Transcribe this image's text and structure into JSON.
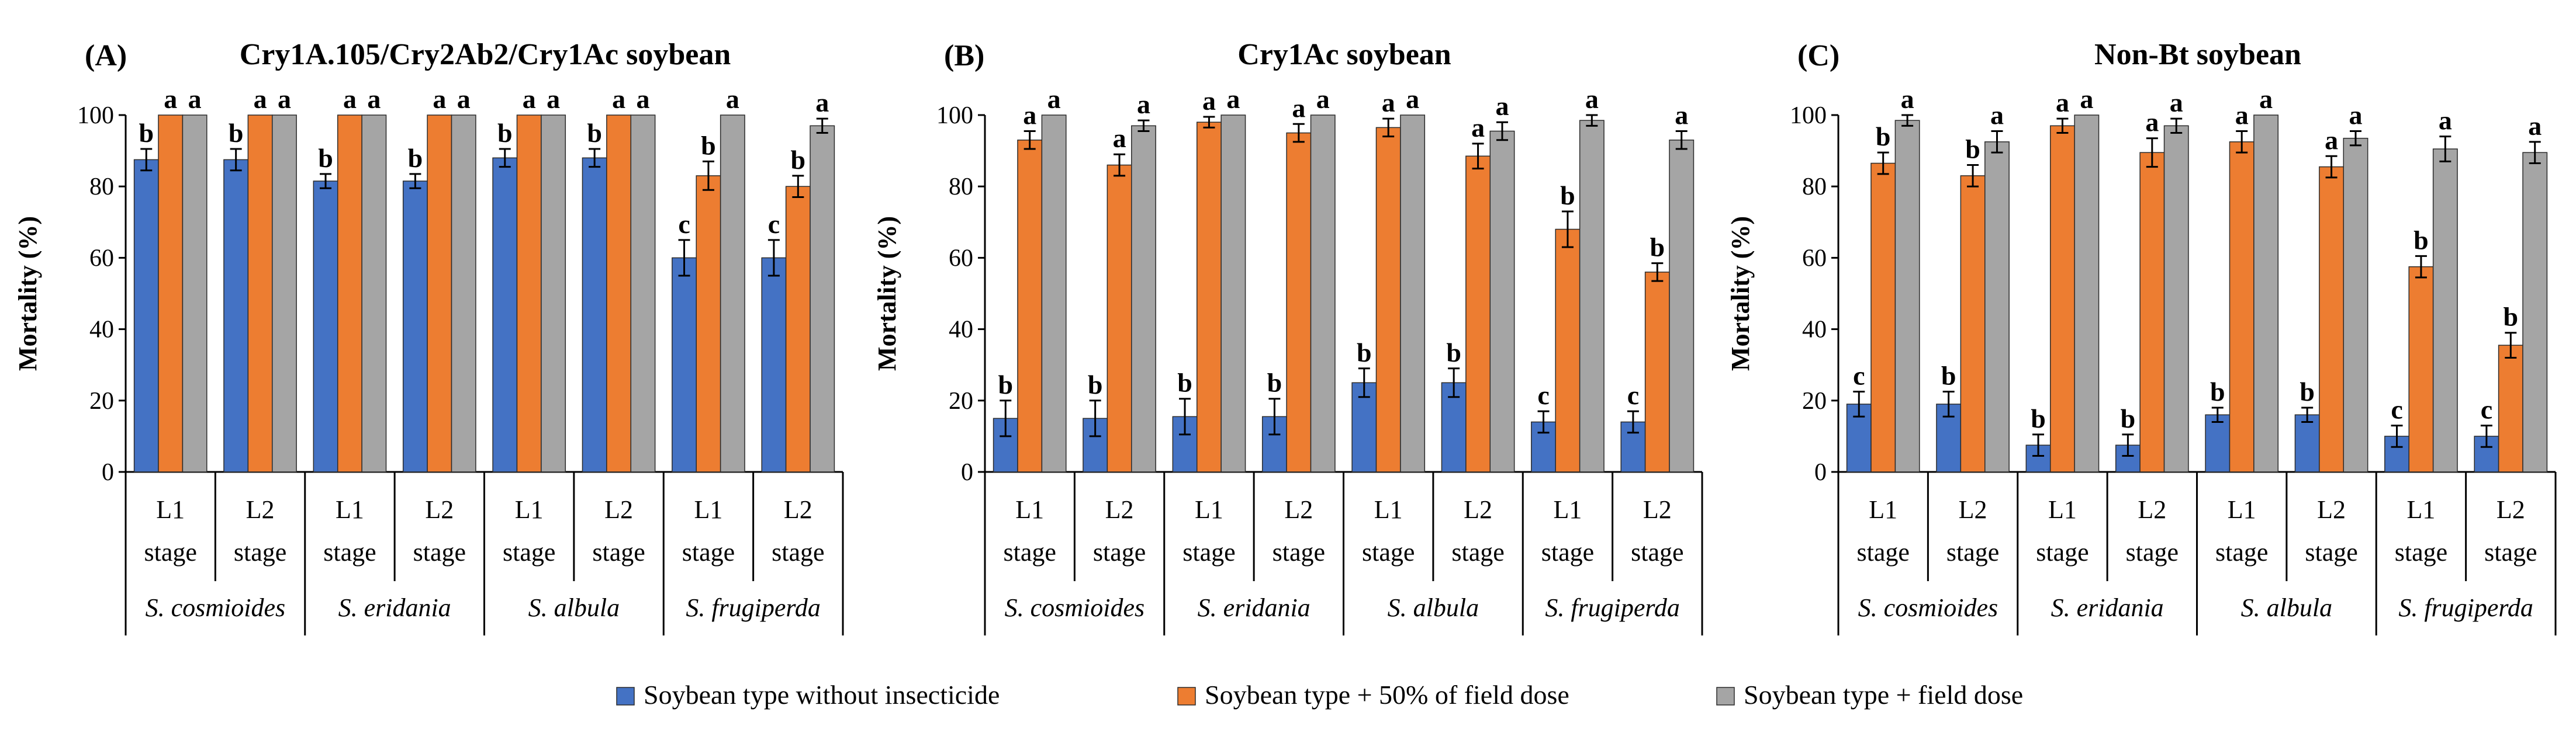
{
  "colors": {
    "without": "#4472C4",
    "half": "#ED7D31",
    "field": "#A5A5A5",
    "axis": "#000000"
  },
  "legend": [
    {
      "label": "Soybean type without insecticide",
      "color": "#4472C4"
    },
    {
      "label": "Soybean type + 50% of field dose",
      "color": "#ED7D31"
    },
    {
      "label": "Soybean type + field dose",
      "color": "#A5A5A5"
    }
  ],
  "chart_data": [
    {
      "type": "bar",
      "panel": "(A)",
      "title": "Cry1A.105/Cry2Ab2/Cry1Ac soybean",
      "ylabel": "Mortality (%)",
      "ylim": [
        0,
        100
      ],
      "yticks": [
        "0",
        "20",
        "40",
        "60",
        "80",
        "100"
      ],
      "stages": [
        "L1",
        "L2",
        "L1",
        "L2",
        "L1",
        "L2",
        "L1",
        "L2"
      ],
      "stage_word": "stage",
      "species": [
        "S. cosmioides",
        "S. eridania",
        "S. albula",
        "S. frugiperda"
      ],
      "series": [
        {
          "name": "Soybean type without insecticide",
          "values": [
            87.5,
            87.5,
            81.5,
            81.5,
            88,
            88,
            60,
            60
          ],
          "errors": [
            3,
            3,
            2,
            2,
            2.5,
            2.5,
            5,
            5
          ],
          "letters": [
            "b",
            "b",
            "b",
            "b",
            "b",
            "b",
            "c",
            "c"
          ]
        },
        {
          "name": "Soybean type + 50% of field dose",
          "values": [
            100,
            100,
            100,
            100,
            100,
            100,
            83,
            80
          ],
          "errors": [
            0,
            0,
            0,
            0,
            0,
            0,
            4,
            3
          ],
          "letters": [
            "a",
            "a",
            "a",
            "a",
            "a",
            "a",
            "b",
            "b"
          ]
        },
        {
          "name": "Soybean type + field dose",
          "values": [
            100,
            100,
            100,
            100,
            100,
            100,
            100,
            97
          ],
          "errors": [
            0,
            0,
            0,
            0,
            0,
            0,
            0,
            2
          ],
          "letters": [
            "a",
            "a",
            "a",
            "a",
            "a",
            "a",
            "a",
            "a"
          ]
        }
      ]
    },
    {
      "type": "bar",
      "panel": "(B)",
      "title": "Cry1Ac soybean",
      "ylabel": "Mortality (%)",
      "ylim": [
        0,
        100
      ],
      "yticks": [
        "0",
        "20",
        "40",
        "60",
        "80",
        "100"
      ],
      "stages": [
        "L1",
        "L2",
        "L1",
        "L2",
        "L1",
        "L2",
        "L1",
        "L2"
      ],
      "stage_word": "stage",
      "species": [
        "S. cosmioides",
        "S. eridania",
        "S. albula",
        "S. frugiperda"
      ],
      "series": [
        {
          "name": "Soybean type without insecticide",
          "values": [
            15,
            15,
            15.5,
            15.5,
            25,
            25,
            14,
            14
          ],
          "errors": [
            5,
            5,
            5,
            5,
            4,
            4,
            3,
            3
          ],
          "letters": [
            "b",
            "b",
            "b",
            "b",
            "b",
            "b",
            "c",
            "c"
          ]
        },
        {
          "name": "Soybean type + 50% of field dose",
          "values": [
            93,
            86,
            98,
            95,
            96.5,
            88.5,
            68,
            56
          ],
          "errors": [
            2.5,
            3,
            1.5,
            2.5,
            2.5,
            3.5,
            5,
            2.5
          ],
          "letters": [
            "a",
            "a",
            "a",
            "a",
            "a",
            "a",
            "b",
            "b"
          ]
        },
        {
          "name": "Soybean type + field dose",
          "values": [
            100,
            97,
            100,
            100,
            100,
            95.5,
            98.5,
            93
          ],
          "errors": [
            0,
            1.5,
            0,
            0,
            0,
            2.5,
            1.5,
            2.5
          ],
          "letters": [
            "a",
            "a",
            "a",
            "a",
            "a",
            "a",
            "a",
            "a"
          ]
        }
      ]
    },
    {
      "type": "bar",
      "panel": "(C)",
      "title": "Non-Bt soybean",
      "ylabel": "Mortality (%)",
      "ylim": [
        0,
        100
      ],
      "yticks": [
        "0",
        "20",
        "40",
        "60",
        "80",
        "100"
      ],
      "stages": [
        "L1",
        "L2",
        "L1",
        "L2",
        "L1",
        "L2",
        "L1",
        "L2"
      ],
      "stage_word": "stage",
      "species": [
        "S. cosmioides",
        "S. eridania",
        "S. albula",
        "S. frugiperda"
      ],
      "series": [
        {
          "name": "Soybean type without insecticide",
          "values": [
            19,
            19,
            7.5,
            7.5,
            16,
            16,
            10,
            10
          ],
          "errors": [
            3.5,
            3.5,
            3,
            3,
            2,
            2,
            3,
            3
          ],
          "letters": [
            "c",
            "b",
            "b",
            "b",
            "b",
            "b",
            "c",
            "c"
          ]
        },
        {
          "name": "Soybean type + 50% of field dose",
          "values": [
            86.5,
            83,
            97,
            89.5,
            92.5,
            85.5,
            57.5,
            35.5
          ],
          "errors": [
            3,
            3,
            2,
            4,
            3,
            3,
            3,
            3.5
          ],
          "letters": [
            "b",
            "b",
            "a",
            "a",
            "a",
            "a",
            "b",
            "b"
          ]
        },
        {
          "name": "Soybean type + field dose",
          "values": [
            98.5,
            92.5,
            100,
            97,
            100,
            93.5,
            90.5,
            89.5
          ],
          "errors": [
            1.5,
            3,
            0,
            2,
            0,
            2,
            3.5,
            3
          ],
          "letters": [
            "a",
            "a",
            "a",
            "a",
            "a",
            "a",
            "a",
            "a"
          ]
        }
      ]
    }
  ]
}
